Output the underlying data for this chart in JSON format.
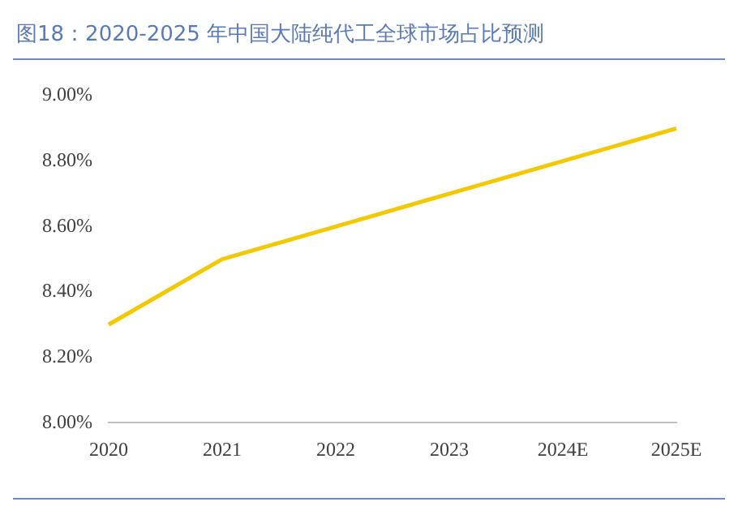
{
  "chart_data": {
    "type": "line",
    "title": "图18：2020-2025 年中国大陆纯代工全球市场占比预测",
    "categories": [
      "2020",
      "2021",
      "2022",
      "2023",
      "2024E",
      "2025E"
    ],
    "series": [
      {
        "color": "#f2c800",
        "values": [
          8.3,
          8.5,
          8.6,
          8.7,
          8.8,
          8.9
        ]
      }
    ],
    "ylim": [
      8,
      9
    ],
    "yticks": [
      {
        "value": 8,
        "label": "8.00%"
      },
      {
        "value": 8.2,
        "label": "8.20%"
      },
      {
        "value": 8.4,
        "label": "8.40%"
      },
      {
        "value": 8.6,
        "label": "8.60%"
      },
      {
        "value": 8.8,
        "label": "8.80%"
      },
      {
        "value": 9,
        "label": "9.00%"
      }
    ],
    "grid": false,
    "legend": false,
    "marker": "none",
    "line_style": "solid"
  }
}
